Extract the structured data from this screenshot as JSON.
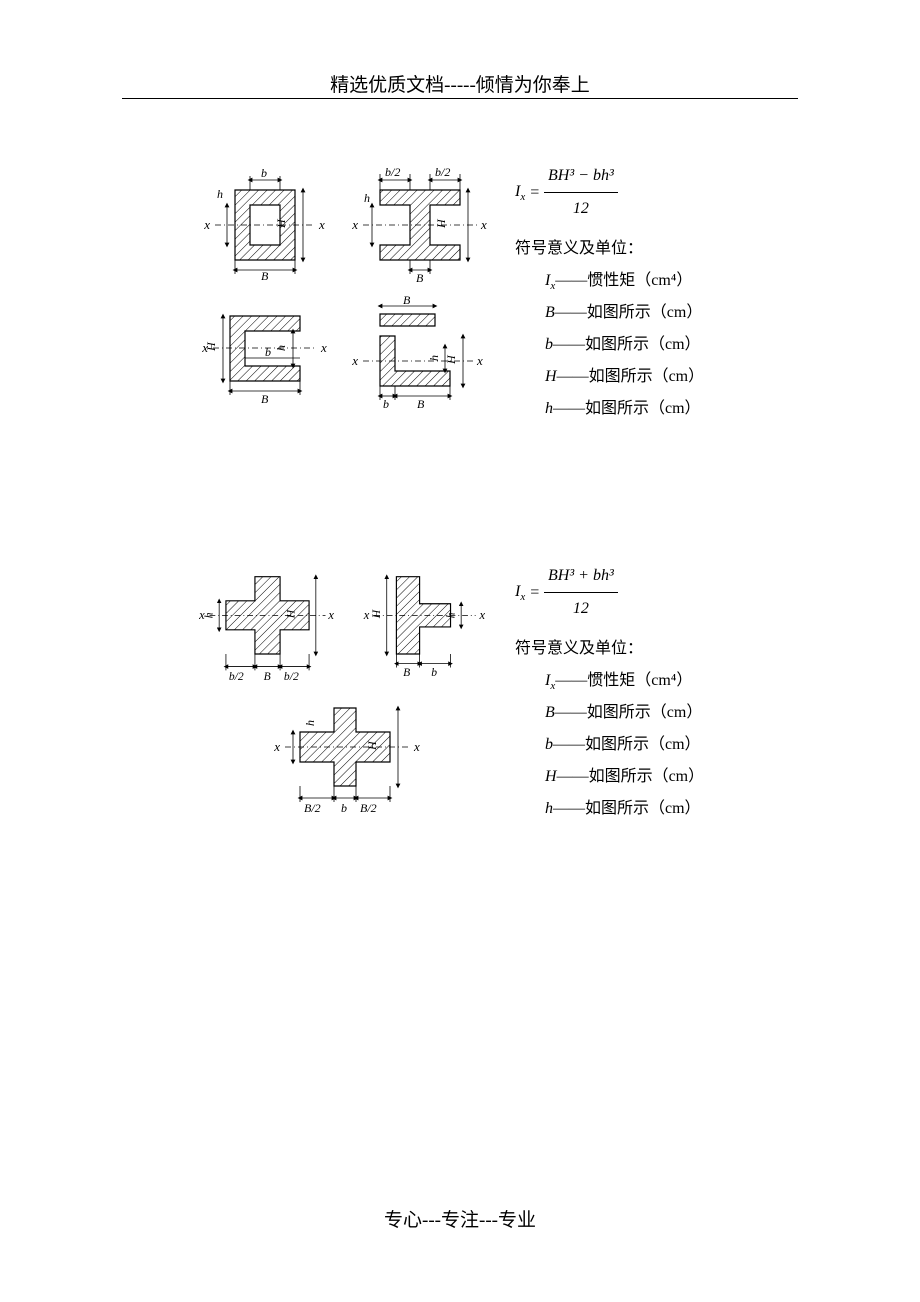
{
  "header": "精选优质文档-----倾情为你奉上",
  "footer": "专心---专注---专业",
  "block1": {
    "formula_lhs": "I",
    "formula_sub": "x",
    "formula_eq": " = ",
    "formula_num": "BH³ − bh³",
    "formula_den": "12",
    "defs_title": "符号意义及单位：",
    "defs": [
      {
        "sym": "I",
        "sub": "x",
        "text": "——惯性矩（cm⁴）"
      },
      {
        "sym": "B",
        "sub": "",
        "text": "——如图所示（cm）"
      },
      {
        "sym": "b",
        "sub": "",
        "text": "——如图所示（cm）"
      },
      {
        "sym": "H",
        "sub": "",
        "text": "——如图所示（cm）"
      },
      {
        "sym": "h",
        "sub": "",
        "text": "——如图所示（cm）"
      }
    ],
    "labels": {
      "b": "b",
      "h": "h",
      "B": "B",
      "H": "H",
      "b2": "b/2",
      "B2": "B/2",
      "x": "x"
    }
  },
  "block2": {
    "formula_lhs": "I",
    "formula_sub": "x",
    "formula_eq": " = ",
    "formula_num": "BH³ + bh³",
    "formula_den": "12",
    "defs_title": "符号意义及单位：",
    "defs": [
      {
        "sym": "I",
        "sub": "x",
        "text": "——惯性矩（cm⁴）"
      },
      {
        "sym": "B",
        "sub": "",
        "text": "——如图所示（cm）"
      },
      {
        "sym": "b",
        "sub": "",
        "text": "——如图所示（cm）"
      },
      {
        "sym": "H",
        "sub": "",
        "text": "——如图所示（cm）"
      },
      {
        "sym": "h",
        "sub": "",
        "text": "——如图所示（cm）"
      }
    ],
    "labels": {
      "b": "b",
      "h": "h",
      "B": "B",
      "H": "H",
      "b2": "b/2",
      "B2": "B/2",
      "x": "x"
    }
  },
  "style": {
    "page_bg": "#ffffff",
    "text_color": "#000000",
    "line_color": "#000000",
    "heading_fontsize": 19,
    "body_fontsize": 16,
    "diagram_label_fontsize": 12
  }
}
